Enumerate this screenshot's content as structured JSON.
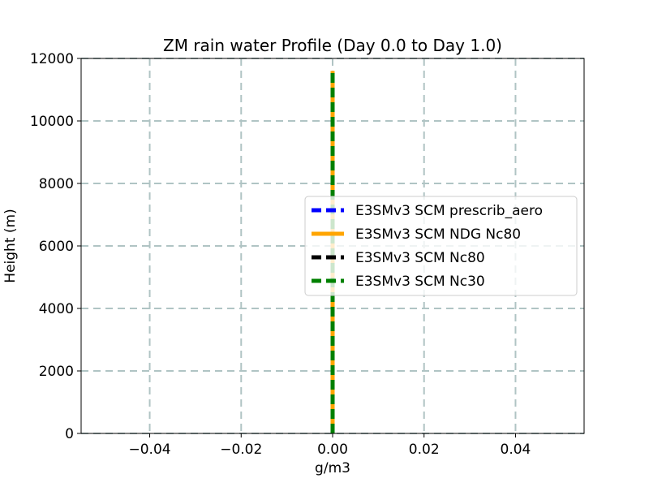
{
  "chart_data": {
    "type": "line",
    "title": "ZM rain water Profile (Day 0.0 to Day 1.0)",
    "xlabel": "g/m3",
    "ylabel": "Height (m)",
    "xlim": [
      -0.055,
      0.055
    ],
    "ylim": [
      0,
      12000
    ],
    "xticks": [
      -0.04,
      -0.02,
      0.0,
      0.02,
      0.04
    ],
    "xtick_labels": [
      "−0.04",
      "−0.02",
      "0.00",
      "0.02",
      "0.04"
    ],
    "yticks": [
      0,
      2000,
      4000,
      6000,
      8000,
      10000,
      12000
    ],
    "ytick_labels": [
      "0",
      "2000",
      "4000",
      "6000",
      "8000",
      "10000",
      "12000"
    ],
    "grid": true,
    "legend_position": "center-right",
    "series": [
      {
        "name": "E3SMv3 SCM prescrib_aero",
        "color": "#0000ff",
        "style": "dashed",
        "x": [
          0,
          0
        ],
        "y": [
          0,
          11600
        ]
      },
      {
        "name": "E3SMv3 SCM NDG Nc80",
        "color": "#ffa500",
        "style": "solid",
        "x": [
          0,
          0
        ],
        "y": [
          0,
          11600
        ]
      },
      {
        "name": "E3SMv3 SCM Nc80",
        "color": "#000000",
        "style": "dashed",
        "x": [
          0,
          0
        ],
        "y": [
          0,
          11600
        ]
      },
      {
        "name": "E3SMv3 SCM Nc30",
        "color": "#008000",
        "style": "dashed",
        "x": [
          0,
          0
        ],
        "y": [
          0,
          11600
        ]
      }
    ]
  }
}
